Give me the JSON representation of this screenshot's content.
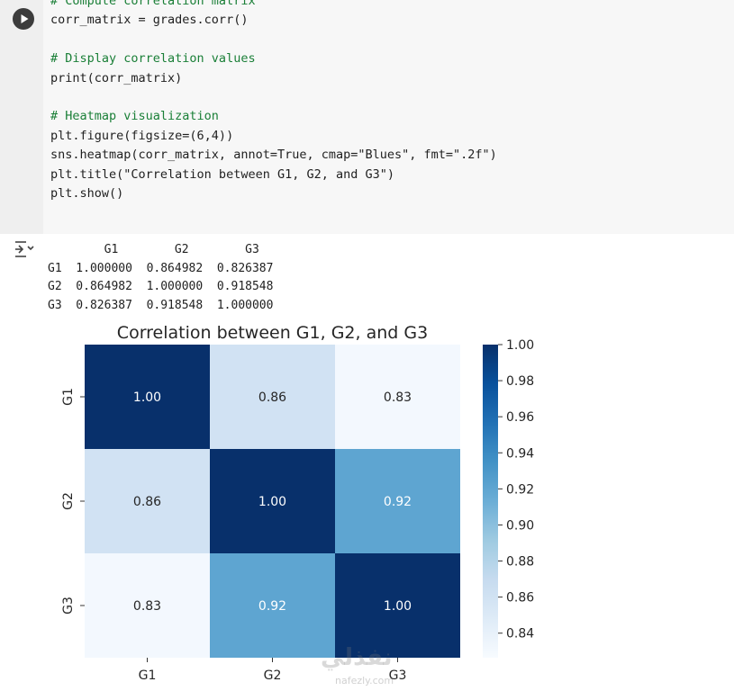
{
  "cell": {
    "run_icon": "play-circle-icon",
    "code_lines": [
      {
        "t": "# Compute correlation matrix",
        "cls": "c"
      },
      {
        "t": "corr_matrix = grades.corr()",
        "cls": ""
      },
      {
        "t": "",
        "cls": ""
      },
      {
        "t": "# Display correlation values",
        "cls": "c"
      },
      {
        "t": "print(corr_matrix)",
        "cls": ""
      },
      {
        "t": "",
        "cls": ""
      },
      {
        "t": "# Heatmap visualization",
        "cls": "c"
      },
      {
        "t": "plt.figure(figsize=(6,4))",
        "cls": ""
      },
      {
        "t": "sns.heatmap(corr_matrix, annot=True, cmap=\"Blues\", fmt=\".2f\")",
        "cls": ""
      },
      {
        "t": "plt.title(\"Correlation between G1, G2, and G3\")",
        "cls": ""
      },
      {
        "t": "plt.show()",
        "cls": ""
      }
    ]
  },
  "output": {
    "icon": "output-toggle-icon",
    "printed_lines": [
      "        G1        G2        G3",
      "G1  1.000000  0.864982  0.826387",
      "G2  0.864982  1.000000  0.918548",
      "G3  0.826387  0.918548  1.000000"
    ]
  },
  "chart_data": {
    "type": "heatmap",
    "title": "Correlation between G1, G2, and G3",
    "x_categories": [
      "G1",
      "G2",
      "G3"
    ],
    "y_categories": [
      "G1",
      "G2",
      "G3"
    ],
    "values": [
      [
        1.0,
        0.86,
        0.83
      ],
      [
        0.86,
        1.0,
        0.92
      ],
      [
        0.83,
        0.92,
        1.0
      ]
    ],
    "colormap": "Blues",
    "colorbar_range": [
      0.826387,
      1.0
    ],
    "colorbar_ticks": [
      "1.00",
      "0.98",
      "0.96",
      "0.94",
      "0.92",
      "0.90",
      "0.88",
      "0.86",
      "0.84"
    ],
    "colors": {
      "dark_cell": "#08306b",
      "light_cell": "#f7fbff",
      "dark_text": "#ffffff",
      "light_text": "#262626"
    }
  },
  "watermark": {
    "text": "نفذلي",
    "sub": "nafezly.com"
  }
}
